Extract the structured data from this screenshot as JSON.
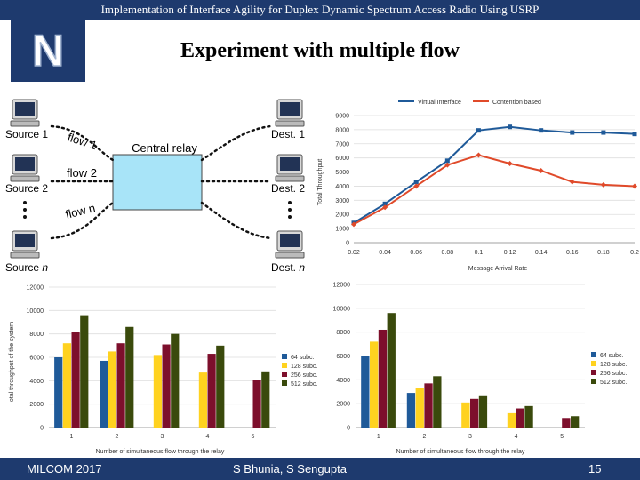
{
  "header": {
    "title": "Implementation of Interface Agility for Duplex Dynamic Spectrum Access Radio Using USRP"
  },
  "slide": {
    "title": "Experiment with multiple flow"
  },
  "logo": {
    "letter": "N"
  },
  "footer": {
    "left": "MILCOM 2017",
    "center": "S Bhunia, S Sengupta",
    "page": "15"
  },
  "colors": {
    "header_bg": "#1e3a6e",
    "relay_fill": "#a8e4f8",
    "s64": "#1f5a99",
    "s128": "#ffd21f",
    "s256": "#7d0f2c",
    "s512": "#3a4a0c",
    "line_vi": "#1f5a99",
    "line_cb": "#e04a2a"
  },
  "diagram": {
    "sources": [
      "Source 1",
      "Source 2",
      "Source"
    ],
    "source_n_suffix": "n",
    "dests": [
      "Dest. 1",
      "Dest. 2",
      "Dest."
    ],
    "dest_n_suffix": "n",
    "relay_label": "Central relay",
    "flows": [
      "flow 1",
      "flow 2",
      "flow n"
    ],
    "icons": [
      "computer-icon"
    ]
  },
  "chart_data": [
    {
      "type": "line",
      "title": "",
      "xlabel": "Message Arrival Rate",
      "ylabel": "Total Throughput",
      "x": [
        0.02,
        0.04,
        0.06,
        0.08,
        0.1,
        0.12,
        0.14,
        0.16,
        0.18,
        0.2
      ],
      "x_ticks": [
        "0.02",
        "0.04",
        "0.06",
        "0.08",
        "0.1",
        "0.12",
        "0.14",
        "0.16",
        "0.18",
        "0.2"
      ],
      "y_ticks": [
        "0",
        "1000",
        "2000",
        "3000",
        "4000",
        "5000",
        "6000",
        "7000",
        "8000",
        "9000"
      ],
      "ylim": [
        0,
        9000
      ],
      "legend": "top",
      "series": [
        {
          "name": "Virtual Interface",
          "values": [
            1400,
            2750,
            4300,
            5800,
            7950,
            8200,
            7950,
            7800,
            7800,
            7700
          ]
        },
        {
          "name": "Contention based",
          "values": [
            1300,
            2500,
            4000,
            5500,
            6200,
            5600,
            5100,
            4300,
            4100,
            4000
          ]
        }
      ]
    },
    {
      "type": "bar",
      "xlabel": "Number of simultaneous flow through the relay",
      "ylabel": "otal throughput of the system",
      "categories": [
        "1",
        "2",
        "3",
        "4",
        "5"
      ],
      "ylim": [
        0,
        12000
      ],
      "y_ticks": [
        "0",
        "2000",
        "4000",
        "6000",
        "8000",
        "10000",
        "12000"
      ],
      "legend": "right",
      "series": [
        {
          "name": "64 subc.",
          "values": [
            6000,
            5700,
            0,
            0,
            0
          ]
        },
        {
          "name": "128 subc.",
          "values": [
            7200,
            6500,
            6200,
            4700,
            0
          ]
        },
        {
          "name": "256 subc.",
          "values": [
            8200,
            7200,
            7100,
            6300,
            4100
          ]
        },
        {
          "name": "512 subc.",
          "values": [
            9600,
            8600,
            8000,
            7000,
            4800
          ]
        }
      ]
    },
    {
      "type": "bar",
      "xlabel": "Number of simultaneous flow through the relay",
      "ylabel": "",
      "categories": [
        "1",
        "2",
        "3",
        "4",
        "5"
      ],
      "ylim": [
        0,
        12000
      ],
      "y_ticks": [
        "0",
        "2000",
        "4000",
        "6000",
        "8000",
        "10000",
        "12000"
      ],
      "legend": "right",
      "series": [
        {
          "name": "64 subc.",
          "values": [
            6000,
            2900,
            0,
            0,
            0
          ]
        },
        {
          "name": "128 subc.",
          "values": [
            7200,
            3300,
            2100,
            1200,
            0
          ]
        },
        {
          "name": "256 subc.",
          "values": [
            8200,
            3700,
            2400,
            1600,
            800
          ]
        },
        {
          "name": "512 subc.",
          "values": [
            9600,
            4300,
            2700,
            1800,
            950
          ]
        }
      ]
    }
  ]
}
